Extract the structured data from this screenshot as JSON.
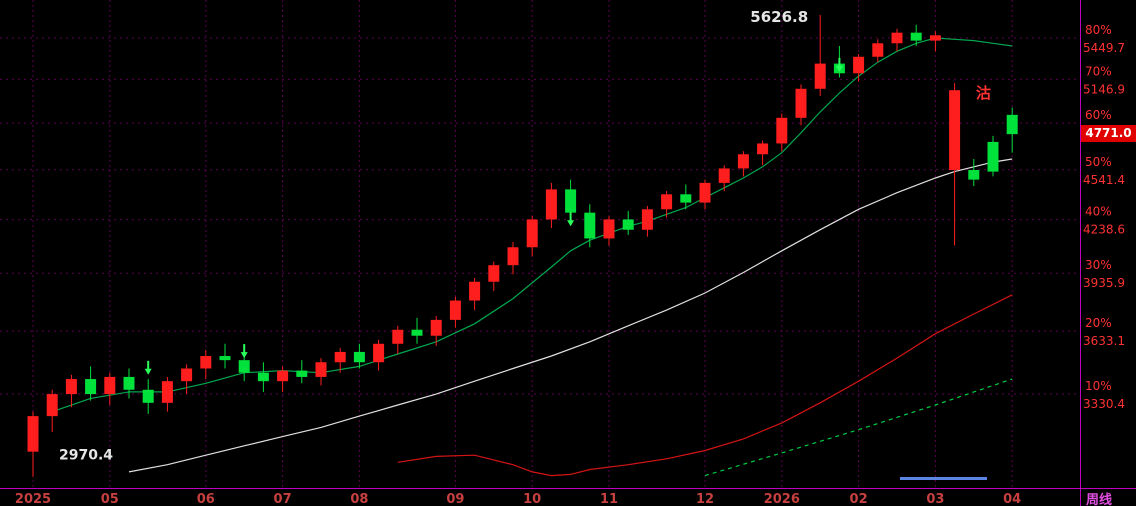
{
  "colors": {
    "background": "#000000",
    "grid": "#5a0050",
    "axis_line": "#c000c0",
    "candle_up": "#ff1e1e",
    "candle_down": "#00e13c",
    "ma_fast": "#00a84e",
    "ma_slow": "#e0e0e0",
    "trend_red": "#d41414",
    "trend_dotted_green": "#00cc44",
    "axis_label_red": "#ff3232",
    "month_label": "#c64040",
    "period_label": "#e24fe2",
    "annotation_white": "#e6e6e6",
    "signal_arrow": "#2aff5a",
    "sell_label": "#ff3232",
    "price_tag_bg": "#e00000",
    "price_tag_text": "#ffffff",
    "scrollbar": "#5b86e5"
  },
  "chart_data": {
    "type": "candlestick",
    "period_label": "周线",
    "scale": "log-percent",
    "high_annotation": {
      "label": "5626.8",
      "index": 41,
      "value": 5626.8
    },
    "low_annotation": {
      "label": "2970.4",
      "index": 0,
      "value": 2970.4
    },
    "sell_annotation": {
      "label": "沽",
      "index": 49.5,
      "value": 5050
    },
    "current_price": {
      "label": "4771.0",
      "value": 4771.0
    },
    "x_axis": {
      "ticks": [
        {
          "i": 0,
          "label": "2025"
        },
        {
          "i": 4,
          "label": "05"
        },
        {
          "i": 9,
          "label": "06"
        },
        {
          "i": 13,
          "label": "07"
        },
        {
          "i": 17,
          "label": "08"
        },
        {
          "i": 22,
          "label": "09"
        },
        {
          "i": 26,
          "label": "10"
        },
        {
          "i": 30,
          "label": "11"
        },
        {
          "i": 35,
          "label": "12"
        },
        {
          "i": 39,
          "label": "2026"
        },
        {
          "i": 43,
          "label": "02"
        },
        {
          "i": 47,
          "label": "03"
        },
        {
          "i": 51,
          "label": "04"
        }
      ]
    },
    "y_axis": {
      "levels": [
        {
          "percent": "80%",
          "price_label": "5449.7",
          "value": 5449.7
        },
        {
          "percent": "70%",
          "price_label": "5146.9",
          "value": 5146.9
        },
        {
          "percent": "60%",
          "price_label": "",
          "value": 4844.2
        },
        {
          "percent": "50%",
          "price_label": "4541.4",
          "value": 4541.4
        },
        {
          "percent": "40%",
          "price_label": "4238.6",
          "value": 4238.6
        },
        {
          "percent": "30%",
          "price_label": "3935.9",
          "value": 3935.9
        },
        {
          "percent": "20%",
          "price_label": "3633.1",
          "value": 3633.1
        },
        {
          "percent": "10%",
          "price_label": "3330.4",
          "value": 3330.4
        }
      ]
    },
    "signal_arrows": [
      {
        "index": 6,
        "value": 3420
      },
      {
        "index": 11,
        "value": 3500
      },
      {
        "index": 28,
        "value": 4200
      },
      {
        "index": 42,
        "value": 5200
      }
    ],
    "candles": [
      [
        3075,
        3250,
        2970.4,
        3230,
        "r"
      ],
      [
        3230,
        3350,
        3160,
        3330,
        "r"
      ],
      [
        3330,
        3420,
        3270,
        3400,
        "r"
      ],
      [
        3400,
        3460,
        3300,
        3330,
        "g"
      ],
      [
        3330,
        3430,
        3280,
        3410,
        "r"
      ],
      [
        3410,
        3450,
        3310,
        3350,
        "g"
      ],
      [
        3350,
        3400,
        3240,
        3290,
        "g"
      ],
      [
        3290,
        3410,
        3250,
        3390,
        "r"
      ],
      [
        3390,
        3470,
        3330,
        3450,
        "r"
      ],
      [
        3450,
        3540,
        3400,
        3510,
        "r"
      ],
      [
        3510,
        3570,
        3450,
        3490,
        "g"
      ],
      [
        3490,
        3530,
        3390,
        3430,
        "g"
      ],
      [
        3430,
        3480,
        3340,
        3390,
        "g"
      ],
      [
        3390,
        3460,
        3340,
        3440,
        "r"
      ],
      [
        3440,
        3490,
        3380,
        3410,
        "g"
      ],
      [
        3410,
        3500,
        3370,
        3480,
        "r"
      ],
      [
        3480,
        3550,
        3430,
        3530,
        "r"
      ],
      [
        3530,
        3570,
        3450,
        3480,
        "g"
      ],
      [
        3480,
        3590,
        3440,
        3570,
        "r"
      ],
      [
        3570,
        3660,
        3520,
        3640,
        "r"
      ],
      [
        3640,
        3700,
        3570,
        3610,
        "g"
      ],
      [
        3610,
        3710,
        3560,
        3690,
        "r"
      ],
      [
        3690,
        3810,
        3650,
        3790,
        "r"
      ],
      [
        3790,
        3910,
        3740,
        3890,
        "r"
      ],
      [
        3890,
        4000,
        3840,
        3980,
        "r"
      ],
      [
        3980,
        4110,
        3930,
        4080,
        "r"
      ],
      [
        4080,
        4260,
        4030,
        4240,
        "r"
      ],
      [
        4240,
        4460,
        4190,
        4420,
        "r"
      ],
      [
        4420,
        4480,
        4230,
        4280,
        "g"
      ],
      [
        4280,
        4330,
        4080,
        4130,
        "g"
      ],
      [
        4130,
        4260,
        4090,
        4240,
        "r"
      ],
      [
        4240,
        4290,
        4150,
        4180,
        "g"
      ],
      [
        4180,
        4320,
        4140,
        4300,
        "r"
      ],
      [
        4300,
        4410,
        4250,
        4390,
        "r"
      ],
      [
        4390,
        4450,
        4300,
        4340,
        "g"
      ],
      [
        4340,
        4480,
        4300,
        4460,
        "r"
      ],
      [
        4460,
        4570,
        4410,
        4550,
        "r"
      ],
      [
        4550,
        4660,
        4500,
        4640,
        "r"
      ],
      [
        4640,
        4730,
        4570,
        4710,
        "r"
      ],
      [
        4710,
        4910,
        4660,
        4880,
        "r"
      ],
      [
        4880,
        5110,
        4830,
        5080,
        "r"
      ],
      [
        5080,
        5626.8,
        5030,
        5260,
        "r"
      ],
      [
        5260,
        5390,
        5160,
        5190,
        "g"
      ],
      [
        5190,
        5330,
        5130,
        5310,
        "r"
      ],
      [
        5310,
        5440,
        5270,
        5410,
        "r"
      ],
      [
        5410,
        5520,
        5350,
        5490,
        "r"
      ],
      [
        5490,
        5550,
        5390,
        5430,
        "g"
      ],
      [
        5430,
        5500,
        5350,
        5470,
        "r"
      ],
      [
        5070,
        5120,
        4090,
        4540,
        "r"
      ],
      [
        4540,
        4610,
        4440,
        4480,
        "g"
      ],
      [
        4720,
        4760,
        4500,
        4530,
        "g"
      ],
      [
        4900,
        4950,
        4650,
        4771,
        "g"
      ]
    ],
    "overlays": [
      {
        "name": "ma-fast-green",
        "color_key": "ma_fast",
        "style": "solid",
        "points": [
          [
            1,
            3250
          ],
          [
            3,
            3310
          ],
          [
            5,
            3340
          ],
          [
            7,
            3340
          ],
          [
            9,
            3380
          ],
          [
            11,
            3430
          ],
          [
            13,
            3440
          ],
          [
            15,
            3430
          ],
          [
            17,
            3460
          ],
          [
            19,
            3520
          ],
          [
            21,
            3580
          ],
          [
            23,
            3670
          ],
          [
            25,
            3800
          ],
          [
            27,
            3970
          ],
          [
            28,
            4060
          ],
          [
            29,
            4120
          ],
          [
            30,
            4160
          ],
          [
            31,
            4200
          ],
          [
            32,
            4230
          ],
          [
            33,
            4270
          ],
          [
            34,
            4310
          ],
          [
            35,
            4370
          ],
          [
            36,
            4430
          ],
          [
            37,
            4490
          ],
          [
            38,
            4560
          ],
          [
            39,
            4650
          ],
          [
            40,
            4780
          ],
          [
            41,
            4920
          ],
          [
            42,
            5050
          ],
          [
            43,
            5170
          ],
          [
            44,
            5270
          ],
          [
            45,
            5350
          ],
          [
            46,
            5410
          ],
          [
            47,
            5450
          ],
          [
            48,
            5440
          ],
          [
            49,
            5430
          ],
          [
            50,
            5410
          ],
          [
            51,
            5390
          ]
        ]
      },
      {
        "name": "ma-slow-white",
        "color_key": "ma_slow",
        "style": "solid",
        "points": [
          [
            5,
            2990
          ],
          [
            7,
            3020
          ],
          [
            9,
            3060
          ],
          [
            11,
            3100
          ],
          [
            13,
            3140
          ],
          [
            15,
            3180
          ],
          [
            17,
            3230
          ],
          [
            19,
            3280
          ],
          [
            21,
            3330
          ],
          [
            23,
            3390
          ],
          [
            25,
            3450
          ],
          [
            27,
            3510
          ],
          [
            29,
            3580
          ],
          [
            31,
            3660
          ],
          [
            33,
            3740
          ],
          [
            35,
            3830
          ],
          [
            37,
            3940
          ],
          [
            39,
            4060
          ],
          [
            41,
            4180
          ],
          [
            43,
            4300
          ],
          [
            45,
            4400
          ],
          [
            47,
            4490
          ],
          [
            48,
            4530
          ],
          [
            49,
            4560
          ],
          [
            50,
            4590
          ],
          [
            51,
            4610
          ]
        ]
      },
      {
        "name": "long-trend-red",
        "color_key": "trend_red",
        "style": "solid",
        "points": [
          [
            19,
            3030
          ],
          [
            21,
            3055
          ],
          [
            23,
            3060
          ],
          [
            25,
            3020
          ],
          [
            26,
            2990
          ],
          [
            27,
            2975
          ],
          [
            28,
            2980
          ],
          [
            29,
            3000
          ],
          [
            31,
            3020
          ],
          [
            33,
            3045
          ],
          [
            35,
            3080
          ],
          [
            37,
            3130
          ],
          [
            39,
            3200
          ],
          [
            41,
            3290
          ],
          [
            43,
            3390
          ],
          [
            45,
            3500
          ],
          [
            47,
            3620
          ],
          [
            49,
            3720
          ],
          [
            51,
            3820
          ]
        ]
      },
      {
        "name": "trend-dotted-green",
        "color_key": "trend_dotted_green",
        "style": "dashed",
        "points": [
          [
            35,
            2975
          ],
          [
            39,
            3070
          ],
          [
            43,
            3170
          ],
          [
            47,
            3280
          ],
          [
            51,
            3400
          ]
        ]
      }
    ]
  }
}
